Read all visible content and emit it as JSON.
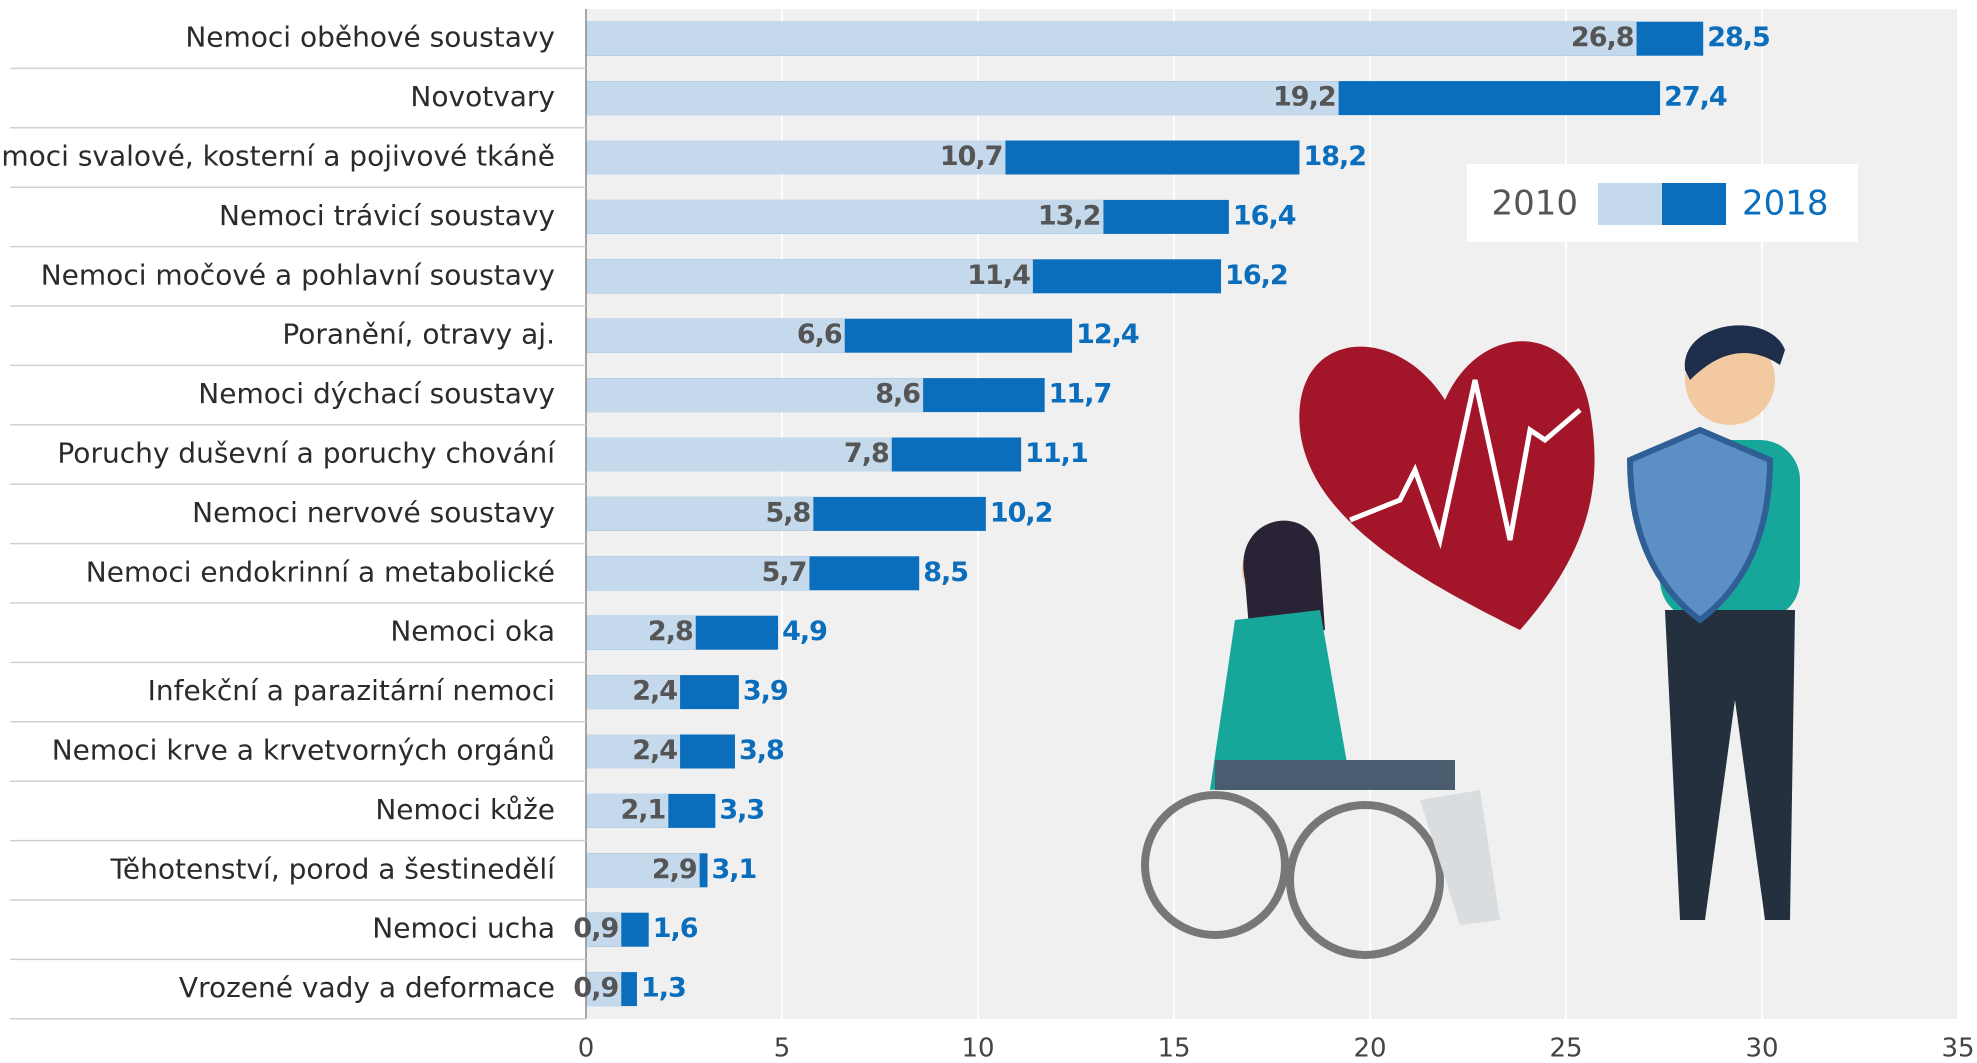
{
  "chart_data": {
    "type": "overlap_bar",
    "categories": [
      "Nemoci oběhové soustavy",
      "Novotvary",
      "Nemoci svalové, kosterní a pojivové tkáně",
      "Nemoci trávicí soustavy",
      "Nemoci močové a pohlavní soustavy",
      "Poranění, otravy aj.",
      "Nemoci dýchací soustavy",
      "Poruchy duševní a poruchy chování",
      "Nemoci nervové soustavy",
      "Nemoci endokrinní a metabolické",
      "Nemoci oka",
      "Infekční a parazitární nemoci",
      "Nemoci krve a krvetvorných orgánů",
      "Nemoci kůže",
      "Těhotenství, porod a šestinedělí",
      "Nemoci ucha",
      "Vrozené vady a deformace"
    ],
    "series": [
      {
        "name": "2010",
        "color": "#c5d9ec",
        "label_color": "#555555",
        "values": [
          26.8,
          19.2,
          10.7,
          13.2,
          11.4,
          6.6,
          8.6,
          7.8,
          5.8,
          5.7,
          2.8,
          2.4,
          2.4,
          2.1,
          2.9,
          0.9,
          0.9
        ],
        "value_labels": [
          "26,8",
          "19,2",
          "10,7",
          "13,2",
          "11,4",
          "6,6",
          "8,6",
          "7,8",
          "5,8",
          "5,7",
          "2,8",
          "2,4",
          "2,4",
          "2,1",
          "2,9",
          "0,9",
          "0,9"
        ]
      },
      {
        "name": "2018",
        "color": "#0a6ebd",
        "label_color": "#0a6ebd",
        "values": [
          28.5,
          27.4,
          18.2,
          16.4,
          16.2,
          12.4,
          11.7,
          11.1,
          10.2,
          8.5,
          4.9,
          3.9,
          3.8,
          3.3,
          3.1,
          1.6,
          1.3
        ],
        "value_labels": [
          "28,5",
          "27,4",
          "18,2",
          "16,4",
          "16,2",
          "12,4",
          "11,7",
          "11,1",
          "10,2",
          "8,5",
          "4,9",
          "3,9",
          "3,8",
          "3,3",
          "3,1",
          "1,6",
          "1,3"
        ]
      }
    ],
    "xlim": [
      0,
      35
    ],
    "xticks": [
      0,
      5,
      10,
      15,
      20,
      25,
      30,
      35
    ],
    "grid": true
  }
}
